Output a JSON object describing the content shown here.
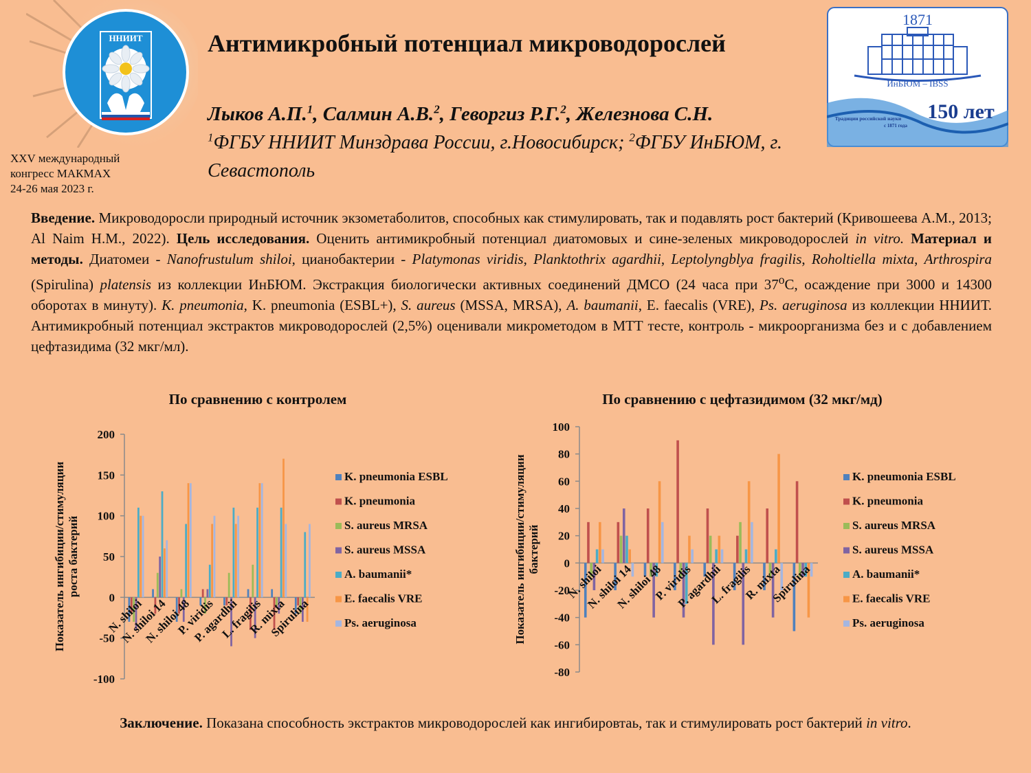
{
  "header": {
    "title": "Антимикробный потенциал микроводорослей",
    "authors": [
      {
        "name": "Лыков А.П.",
        "sup": "1"
      },
      {
        "name": "Салмин А.В.",
        "sup": "2"
      },
      {
        "name": "Геворгиз Р.Г.",
        "sup": "2"
      },
      {
        "name": "Железнова С.Н.",
        "sup": ""
      }
    ],
    "affiliation": {
      "sup1": "1",
      "part1": "ФГБУ ННИИТ Минздрава России, г.Новосибирск; ",
      "sup2": "2",
      "part2": "ФГБУ ИнБЮМ, г. Севастополь"
    },
    "congress": [
      "XXV международный",
      "конгресс МАКМАХ",
      "24-26 мая 2023 г."
    ],
    "logo_left_text": "ННИИТ",
    "logo_right": {
      "year": "1871",
      "name": "ИнБЮМ – IBSS",
      "anniv": "150 лет",
      "tagline1": "Традиции российской науки",
      "tagline2": "с 1871 года"
    }
  },
  "intro": {
    "lead": "Введение.",
    "t1": " Микроводоросли природный источник экзометаболитов, способных как стимулировать, так и подавлять рост бактерий  (Кривошеева А.М., 2013; Al Naim H.M., 2022). ",
    "goal_lead": "Цель исследования.",
    "t2": " Оценить антимикробный потенциал диатомовых и сине-зеленых микроводорослей ",
    "i1": "in vitro.",
    "t3": " ",
    "methods_lead": "Материал и методы.",
    "t4": " Диатомеи - ",
    "i2": "Nanofrustulum shiloi",
    "t5": ", цианобактерии - ",
    "i3": "Platymonas viridis",
    "t6": ", ",
    "i4": "Planktothrix agardhii",
    "t7": ", ",
    "i5": "Leptolyngblya fragilis",
    "t8": ", ",
    "i6": "Roholtiella mixta",
    "t9": ", ",
    "i7": "Arthrospira",
    "t10": " (Spirulina) ",
    "i8": "platensis",
    "t11": " из коллекции ИнБЮМ. Экстракция биологически активных соединений ДМСО (24 часа при 37",
    "deg": "o",
    "t12": "С, осаждение при 3000 и 14300 оборотах в минуту). ",
    "i9": "K. pneumonia",
    "t13": ", K. pneumonia (ESBL+), ",
    "i10": "S. aureus",
    "t14": " (MSSA, MRSA), ",
    "i11": "A. baumanii",
    "t15": ", E. faecalis (VRE), ",
    "i12": "Ps. aeruginosa",
    "t16": " из коллекции ННИИТ. Антимикробный потенциал экстрактов микроводорослей (2,5%) оценивали микрометодом в МТТ тесте, контроль - микроорганизма без и с добавлением цефтазидима (32 мкг/мл)."
  },
  "conclusion": {
    "lead": "Заключение.",
    "t1": " Показана способность экстрактов микроводорослей как ингибировтаь, так и стимулировать рост бактерий ",
    "i1": "in vitro",
    "t2": "."
  },
  "colors": [
    "#4f81bd",
    "#c0504d",
    "#9bbb59",
    "#8064a2",
    "#4bacc6",
    "#f79646",
    "#a5b6e0"
  ],
  "chart_data": [
    {
      "type": "bar",
      "title": "По сравнению с контролем",
      "ylabel": "Показатель ингибиции/стимуляции роста бактерий",
      "xlabel": "",
      "ylim": [
        -100,
        200
      ],
      "yticks": [
        -100,
        -50,
        0,
        50,
        100,
        150,
        200
      ],
      "legend": "right",
      "categories": [
        "N. shiloi",
        "N. shiloi 14",
        "N. shiloi 48",
        "P. viridis",
        "P. agardhii",
        "L. fragilis",
        "R. mixta",
        "Spirulina"
      ],
      "series": [
        {
          "name": "K. pneumonia ESBL",
          "values": [
            -30,
            10,
            -30,
            -10,
            -10,
            10,
            10,
            -20
          ]
        },
        {
          "name": "K. pneumonia",
          "values": [
            -20,
            -20,
            -20,
            10,
            -10,
            -40,
            -40,
            -10
          ]
        },
        {
          "name": "S. aureus MRSA",
          "values": [
            -30,
            30,
            10,
            -20,
            30,
            40,
            -10,
            -20
          ]
        },
        {
          "name": "S. aureus MSSA",
          "values": [
            -40,
            50,
            -30,
            10,
            -60,
            -50,
            -20,
            -30
          ]
        },
        {
          "name": "A. baumanii*",
          "values": [
            110,
            130,
            90,
            40,
            110,
            110,
            110,
            80
          ]
        },
        {
          "name": "E. faecalis VRE",
          "values": [
            100,
            60,
            140,
            90,
            90,
            140,
            170,
            -30
          ]
        },
        {
          "name": "Ps. aeruginosa",
          "values": [
            100,
            70,
            140,
            100,
            100,
            140,
            90,
            90
          ]
        }
      ]
    },
    {
      "type": "bar",
      "title": "По сравнению с цефтазидимом (32 мкг/мд)",
      "ylabel": "Показатель ингибиции/стимуляции бактерий",
      "xlabel": "",
      "ylim": [
        -80,
        100
      ],
      "yticks": [
        -80,
        -60,
        -40,
        -20,
        0,
        20,
        40,
        60,
        80,
        100
      ],
      "legend": "right",
      "categories": [
        "N. shiloi",
        "N. shiloi 14",
        "N. shiloi 48",
        "P. viridis",
        "P. agardhii",
        "L. fragilis",
        "R. mixta",
        "Spirulina"
      ],
      "series": [
        {
          "name": "K. pneumonia ESBL",
          "values": [
            -40,
            -20,
            -10,
            -20,
            -10,
            -20,
            -20,
            -50
          ]
        },
        {
          "name": "K. pneumonia",
          "values": [
            30,
            30,
            40,
            90,
            40,
            20,
            40,
            60
          ]
        },
        {
          "name": "S. aureus MRSA",
          "values": [
            -10,
            20,
            -10,
            -10,
            20,
            30,
            -10,
            -10
          ]
        },
        {
          "name": "S. aureus MSSA",
          "values": [
            -20,
            40,
            -40,
            -40,
            -60,
            -60,
            -40,
            -10
          ]
        },
        {
          "name": "A. baumanii*",
          "values": [
            10,
            20,
            -10,
            -30,
            10,
            10,
            10,
            -10
          ]
        },
        {
          "name": "E. faecalis VRE",
          "values": [
            30,
            10,
            60,
            20,
            20,
            60,
            80,
            -40
          ]
        },
        {
          "name": "Ps. aeruginosa",
          "values": [
            10,
            -10,
            30,
            10,
            10,
            30,
            -20,
            -10
          ]
        }
      ]
    }
  ]
}
